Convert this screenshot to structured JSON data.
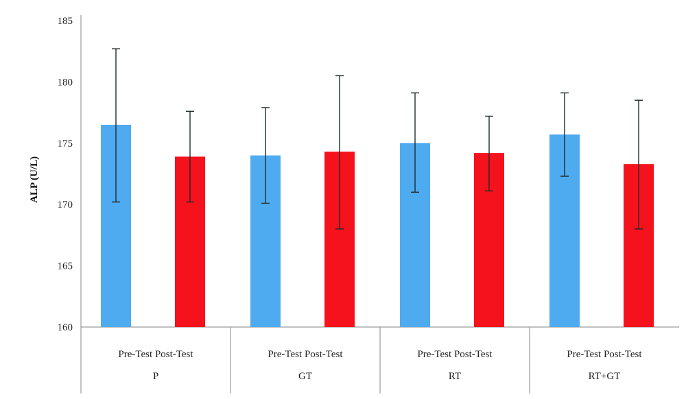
{
  "chart_data": {
    "type": "bar",
    "ylabel": "ALP (U/L)",
    "ylim": [
      160,
      185
    ],
    "yticks": [
      "160",
      "165",
      "170",
      "175",
      "180",
      "185"
    ],
    "groups": [
      "P",
      "GT",
      "RT",
      "RT+GT"
    ],
    "series": [
      {
        "name": "Pre-Test",
        "color": "#4EABEF",
        "values": [
          176.5,
          174.0,
          175.0,
          175.7
        ],
        "error_low": [
          170.2,
          170.1,
          171.0,
          172.3
        ],
        "error_high": [
          182.7,
          177.9,
          179.1,
          179.1
        ]
      },
      {
        "name": "Post-Test",
        "color": "#F5121C",
        "values": [
          173.9,
          174.3,
          174.2,
          173.3
        ],
        "error_low": [
          170.2,
          168.0,
          171.1,
          168.0
        ],
        "error_high": [
          177.6,
          180.5,
          177.2,
          178.5
        ]
      }
    ]
  }
}
